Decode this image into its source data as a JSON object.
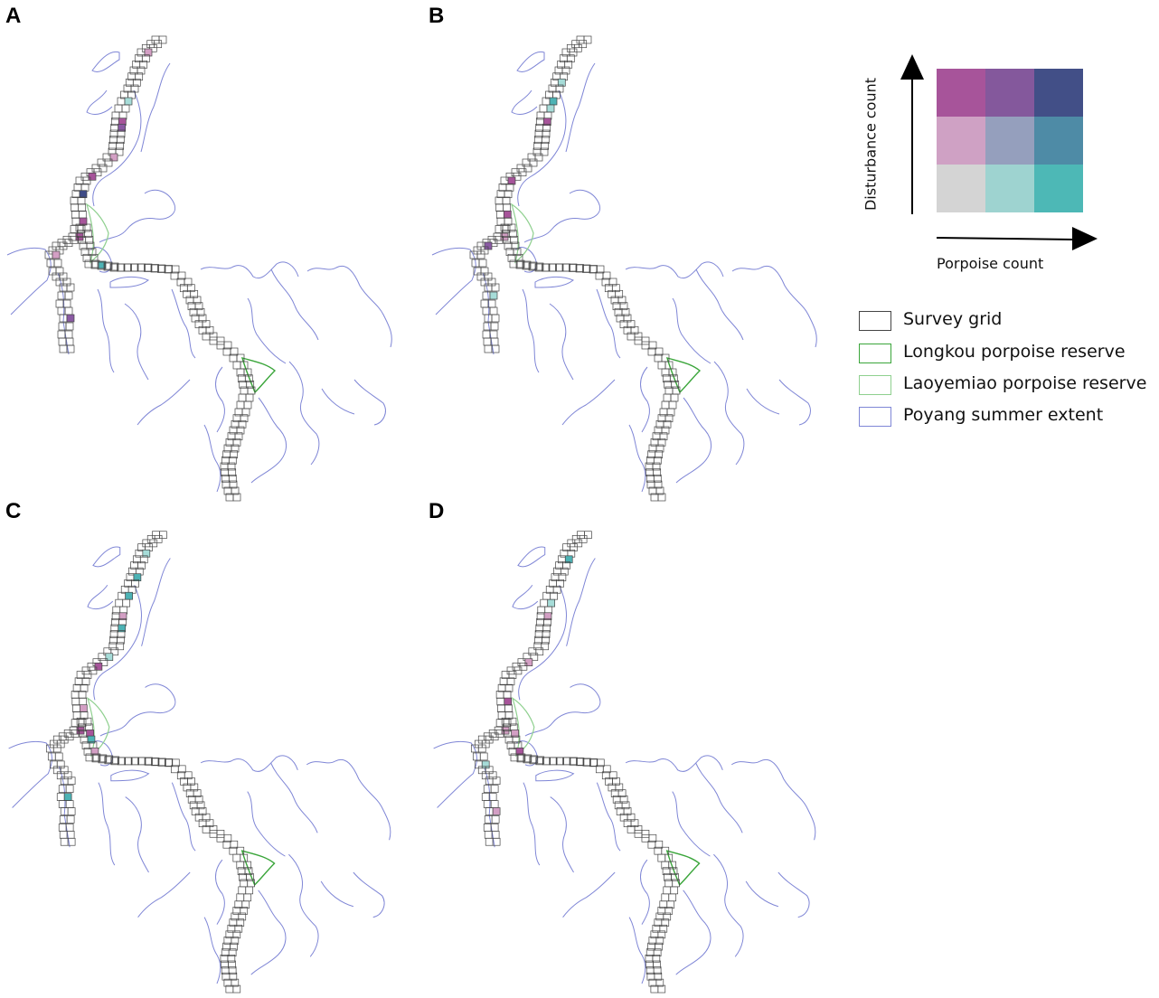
{
  "panels": [
    {
      "letter": "A",
      "highlights": [
        [
          3,
          "#d39fc4"
        ],
        [
          11,
          "#a6dcd8"
        ],
        [
          14,
          "#a7549a"
        ],
        [
          15,
          "#8a5aa3"
        ],
        [
          20,
          "#d39fc4"
        ],
        [
          24,
          "#a7549a"
        ],
        [
          27,
          "#3f4b87"
        ],
        [
          31,
          "#a7549a"
        ],
        [
          33,
          "#a7549a"
        ],
        [
          38,
          "#d39fc4"
        ],
        [
          47,
          "#8a5aa3"
        ],
        [
          59,
          "#4db3b5"
        ]
      ]
    },
    {
      "letter": "B",
      "highlights": [
        [
          8,
          "#a6dcd8"
        ],
        [
          11,
          "#4db3b5"
        ],
        [
          12,
          "#a6dcd8"
        ],
        [
          14,
          "#a7549a"
        ],
        [
          25,
          "#a7549a"
        ],
        [
          30,
          "#a7549a"
        ],
        [
          33,
          "#d39fc4"
        ],
        [
          36,
          "#8a5aa3"
        ],
        [
          44,
          "#a6dcd8"
        ]
      ]
    },
    {
      "letter": "C",
      "highlights": [
        [
          4,
          "#a6dcd8"
        ],
        [
          8,
          "#4db3b5"
        ],
        [
          11,
          "#4db3b5"
        ],
        [
          14,
          "#d39fc4"
        ],
        [
          16,
          "#4db3b5"
        ],
        [
          21,
          "#a6dcd8"
        ],
        [
          23,
          "#a7549a"
        ],
        [
          30,
          "#d39fc4"
        ],
        [
          33,
          "#a7549a"
        ],
        [
          45,
          "#4db3b5"
        ],
        [
          54,
          "#a7549a"
        ],
        [
          55,
          "#4db3b5"
        ],
        [
          57,
          "#d39fc4"
        ]
      ]
    },
    {
      "letter": "D",
      "highlights": [
        [
          5,
          "#4db3b5"
        ],
        [
          12,
          "#a6dcd8"
        ],
        [
          14,
          "#d39fc4"
        ],
        [
          22,
          "#d39fc4"
        ],
        [
          29,
          "#a7549a"
        ],
        [
          33,
          "#d39fc4"
        ],
        [
          40,
          "#a6dcd8"
        ],
        [
          47,
          "#d39fc4"
        ],
        [
          54,
          "#d39fc4"
        ],
        [
          57,
          "#a7549a"
        ]
      ]
    }
  ],
  "bivariate": {
    "y_label": "Disturbance count",
    "x_label": "Porpoise count",
    "cells": [
      [
        "#a7549a",
        "#84589c",
        "#424f87"
      ],
      [
        "#cfa1c4",
        "#959fbd",
        "#4e8ba6"
      ],
      [
        "#d4d4d4",
        "#9ed3d0",
        "#4db8b6"
      ]
    ]
  },
  "legend": [
    {
      "label": "Survey grid",
      "color": "#444444"
    },
    {
      "label": "Longkou porpoise reserve",
      "color": "#3aa53a"
    },
    {
      "label": "Laoyemiao porpoise reserve",
      "color": "#8fd08f"
    },
    {
      "label": "Poyang summer extent",
      "color": "#7f86d6"
    }
  ],
  "colors": {
    "grid": "#444444",
    "lake": "#7f86d6",
    "longkou": "#3aa53a",
    "laoyemiao": "#8fd08f"
  }
}
